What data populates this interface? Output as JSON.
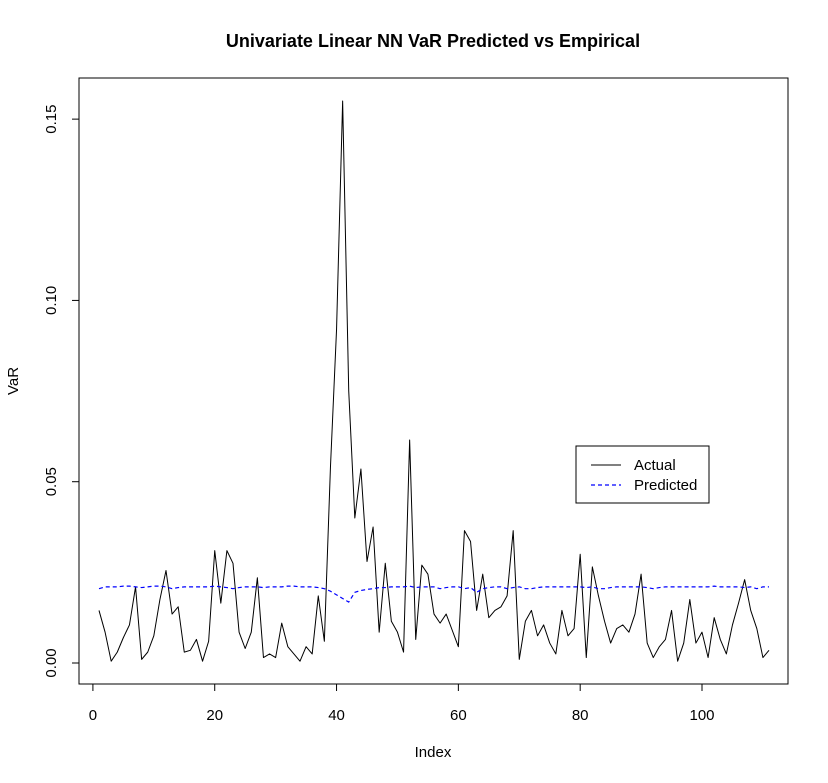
{
  "chart_data": {
    "type": "line",
    "title": "Univariate Linear NN VaR Predicted vs Empirical",
    "xlabel": "Index",
    "ylabel": "VaR",
    "xlim": [
      1,
      111
    ],
    "ylim": [
      0,
      0.155
    ],
    "x_ticks": [
      0,
      20,
      40,
      60,
      80,
      100
    ],
    "x_tick_labels": [
      "0",
      "20",
      "40",
      "60",
      "80",
      "100"
    ],
    "y_ticks": [
      0.0,
      0.05,
      0.1,
      0.15
    ],
    "y_tick_labels": [
      "0.00",
      "0.05",
      "0.10",
      "0.15"
    ],
    "grid": false,
    "legend_position": "right",
    "series": [
      {
        "name": "Actual",
        "color": "#000000",
        "style": "solid",
        "values": [
          0.0145,
          0.0085,
          0.0005,
          0.003,
          0.007,
          0.0105,
          0.021,
          0.001,
          0.003,
          0.0075,
          0.0175,
          0.0255,
          0.0135,
          0.0155,
          0.003,
          0.0035,
          0.0065,
          0.0005,
          0.006,
          0.031,
          0.0165,
          0.031,
          0.0275,
          0.0085,
          0.004,
          0.0085,
          0.0235,
          0.0015,
          0.0025,
          0.0015,
          0.011,
          0.0045,
          0.0025,
          0.0005,
          0.0045,
          0.0025,
          0.0185,
          0.006,
          0.054,
          0.092,
          0.155,
          0.075,
          0.04,
          0.0535,
          0.028,
          0.0375,
          0.0085,
          0.0275,
          0.0115,
          0.0085,
          0.003,
          0.0615,
          0.0065,
          0.027,
          0.0245,
          0.0135,
          0.011,
          0.0135,
          0.009,
          0.0045,
          0.0365,
          0.0335,
          0.0145,
          0.0245,
          0.0125,
          0.0145,
          0.0155,
          0.0185,
          0.0365,
          0.001,
          0.0115,
          0.0145,
          0.0075,
          0.0105,
          0.0055,
          0.0025,
          0.0145,
          0.0075,
          0.0095,
          0.03,
          0.0015,
          0.0265,
          0.0185,
          0.0115,
          0.0055,
          0.0095,
          0.0105,
          0.0085,
          0.0135,
          0.0245,
          0.0055,
          0.0015,
          0.0045,
          0.0065,
          0.0145,
          0.0005,
          0.0055,
          0.0175,
          0.0055,
          0.0085,
          0.0015,
          0.0125,
          0.0065,
          0.0025,
          0.0105,
          0.0165,
          0.023,
          0.0145,
          0.0095,
          0.0015,
          0.0035
        ]
      },
      {
        "name": "Predicted",
        "color": "#0000ff",
        "style": "dashed",
        "values": [
          0.0205,
          0.021,
          0.021,
          0.021,
          0.0212,
          0.0212,
          0.021,
          0.0208,
          0.021,
          0.0212,
          0.0212,
          0.021,
          0.0205,
          0.0208,
          0.021,
          0.021,
          0.021,
          0.021,
          0.021,
          0.0212,
          0.021,
          0.0208,
          0.0205,
          0.0208,
          0.021,
          0.021,
          0.021,
          0.0208,
          0.021,
          0.021,
          0.021,
          0.0212,
          0.0212,
          0.021,
          0.021,
          0.021,
          0.0208,
          0.0205,
          0.0198,
          0.0188,
          0.0178,
          0.0168,
          0.0195,
          0.02,
          0.0203,
          0.0205,
          0.0208,
          0.0208,
          0.021,
          0.021,
          0.021,
          0.0212,
          0.0208,
          0.021,
          0.021,
          0.021,
          0.0205,
          0.0208,
          0.021,
          0.021,
          0.0205,
          0.0208,
          0.0195,
          0.0205,
          0.0208,
          0.021,
          0.021,
          0.0205,
          0.0208,
          0.021,
          0.0205,
          0.0205,
          0.0208,
          0.021,
          0.021,
          0.021,
          0.021,
          0.021,
          0.021,
          0.021,
          0.0208,
          0.021,
          0.0205,
          0.0205,
          0.0208,
          0.021,
          0.021,
          0.021,
          0.021,
          0.021,
          0.0208,
          0.0205,
          0.0208,
          0.021,
          0.021,
          0.021,
          0.021,
          0.021,
          0.021,
          0.021,
          0.021,
          0.0212,
          0.021,
          0.021,
          0.021,
          0.021,
          0.0208,
          0.021,
          0.0205,
          0.021,
          0.021
        ]
      }
    ]
  }
}
